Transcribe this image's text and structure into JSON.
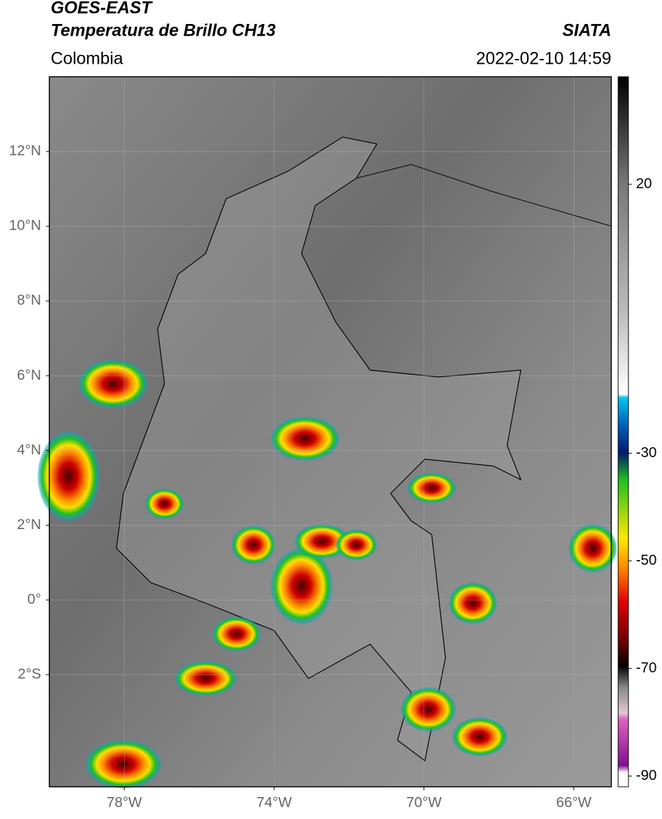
{
  "header": {
    "title_line1": "GOES-EAST",
    "title_line2": "Temperatura de Brillo CH13",
    "source": "SIATA",
    "region": "Colombia",
    "datetime": "2022-02-10 14:59"
  },
  "map": {
    "xlim": [
      -80,
      -65
    ],
    "ylim": [
      -5,
      14
    ],
    "xticks": [
      {
        "value": -78,
        "label": "78°W"
      },
      {
        "value": -74,
        "label": "74°W"
      },
      {
        "value": -70,
        "label": "70°W"
      },
      {
        "value": -66,
        "label": "66°W"
      }
    ],
    "yticks": [
      {
        "value": 12,
        "label": "12°N"
      },
      {
        "value": 10,
        "label": "10°N"
      },
      {
        "value": 8,
        "label": "8°N"
      },
      {
        "value": 6,
        "label": "6°N"
      },
      {
        "value": 4,
        "label": "4°N"
      },
      {
        "value": 2,
        "label": "2°N"
      },
      {
        "value": 0,
        "label": "0°"
      },
      {
        "value": -2,
        "label": "2°S"
      }
    ]
  },
  "colorbar": {
    "lim": [
      -92,
      40
    ],
    "ticks": [
      20,
      -30,
      -50,
      -70,
      -90
    ]
  }
}
